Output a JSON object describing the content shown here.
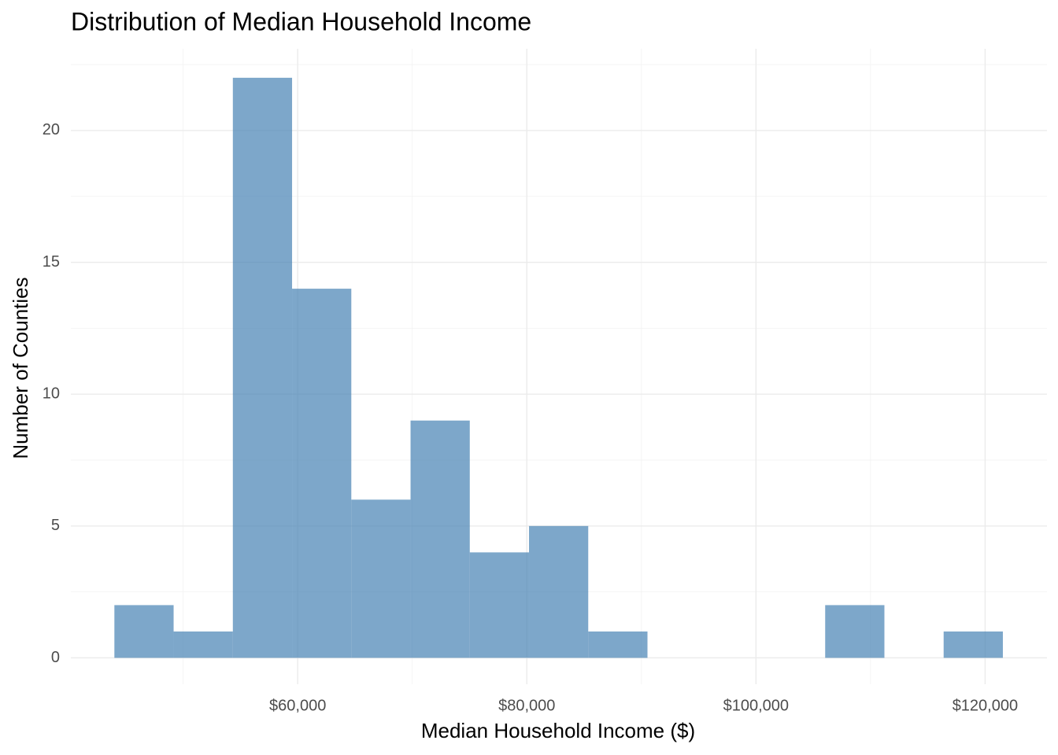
{
  "chart_data": {
    "type": "histogram",
    "title": "Distribution of Median Household Income",
    "x_label": "Median Household Income ($)",
    "y_label": "Number of Counties",
    "bins": [
      44000,
      49170,
      54340,
      59510,
      64680,
      69850,
      75020,
      80190,
      85360,
      90530,
      95700,
      100870,
      106040,
      111210,
      116380,
      121550
    ],
    "values": [
      2,
      1,
      22,
      14,
      6,
      9,
      4,
      5,
      1,
      0,
      0,
      0,
      2,
      0,
      1
    ],
    "color": "#4682b4",
    "alpha": 0.7,
    "xlim": [
      40200,
      125400
    ],
    "xticks": [
      {
        "value": 60000,
        "label": "$60,000"
      },
      {
        "value": 80000,
        "label": "$80,000"
      },
      {
        "value": 100000,
        "label": "$100,000"
      },
      {
        "value": 120000,
        "label": "$120,000"
      }
    ],
    "xminorticks": [
      50000,
      70000,
      90000,
      110000
    ],
    "ylim": [
      -1,
      23.1
    ],
    "yticks": [
      0,
      5,
      10,
      15,
      20
    ],
    "yminorticks": [
      2.5,
      7.5,
      12.5,
      17.5,
      22.5
    ],
    "grid": true
  }
}
